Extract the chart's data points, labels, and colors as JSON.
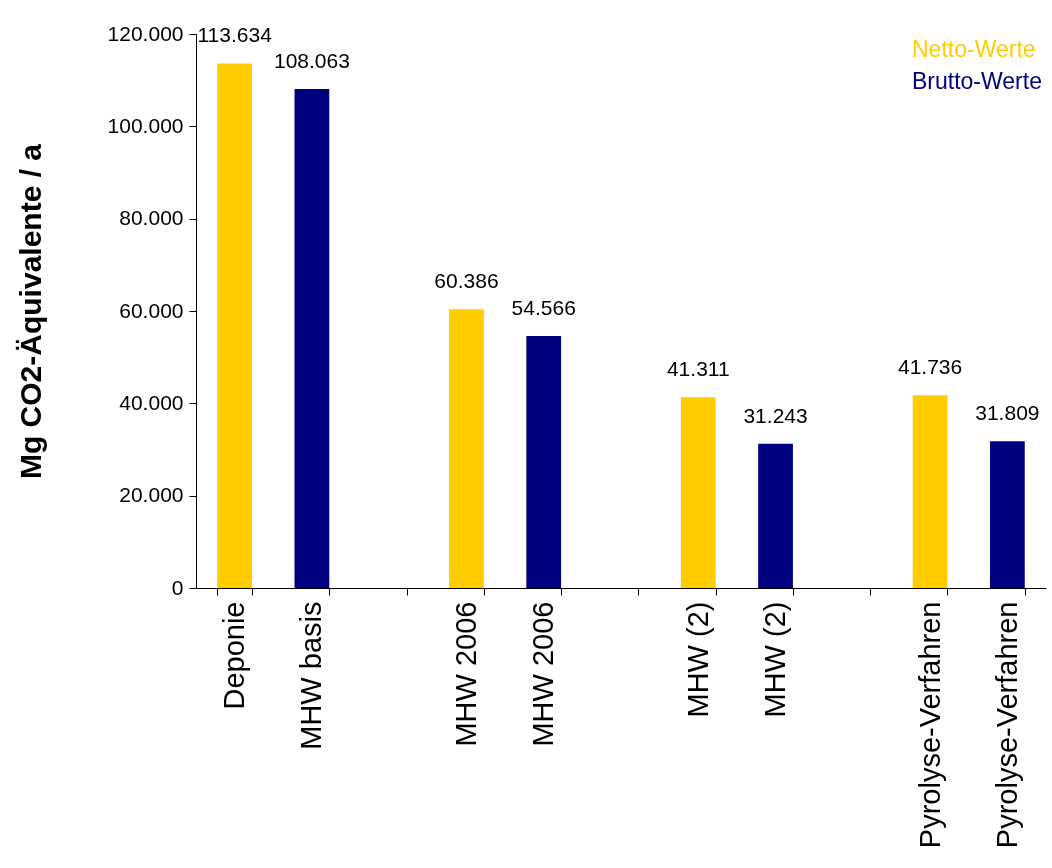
{
  "chart_data": {
    "type": "bar",
    "ylabel": "Mg CO2-Äquivalente / a",
    "categories": [
      "Deponie",
      "MHW basis",
      null,
      "MHW 2006",
      "MHW 2006",
      null,
      "MHW (2)",
      "MHW (2)",
      null,
      "Pyrolyse-Verfahren",
      "Pyrolyse-Verfahren"
    ],
    "series": [
      {
        "name": "Netto-Werte",
        "color": "#ffcc00",
        "values": [
          113634,
          null,
          null,
          60386,
          null,
          null,
          41311,
          null,
          null,
          41736,
          null
        ],
        "value_labels": [
          "113.634",
          null,
          null,
          "60.386",
          null,
          null,
          "41.311",
          null,
          null,
          "41.736",
          null
        ]
      },
      {
        "name": "Brutto-Werte",
        "color": "#000080",
        "values": [
          null,
          108063,
          null,
          null,
          54566,
          null,
          null,
          31243,
          null,
          null,
          31809
        ],
        "value_labels": [
          null,
          "108.063",
          null,
          null,
          "54.566",
          null,
          null,
          "31.243",
          null,
          null,
          "31.809"
        ]
      }
    ],
    "ylim": [
      0,
      120000
    ],
    "yticks": [
      0,
      {
        "value": 20000,
        "label": "20.000"
      },
      {
        "value": 40000,
        "label": "40.000"
      },
      {
        "value": 60000,
        "label": "60.000"
      },
      {
        "value": 80000,
        "label": "80.000"
      },
      {
        "value": 100000,
        "label": "100.000"
      },
      {
        "value": 120000,
        "label": "120.000"
      }
    ],
    "legend": "top right",
    "grid": false
  }
}
